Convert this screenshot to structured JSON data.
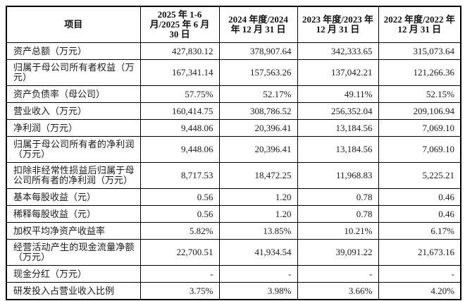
{
  "colors": {
    "background": "#ffffff",
    "border": "#000000",
    "text": "#1a1a1a"
  },
  "table": {
    "columns": [
      "项目",
      "2025 年 1-6 月/2025 年 6 月 30 日",
      "2024 年度/2024 年 12 月 31 日",
      "2023 年度/2023 年 12 月 31 日",
      "2022 年度/2022 年 12 月 31 日"
    ],
    "rows": [
      {
        "label": "资产总额（万元）",
        "values": [
          "427,830.12",
          "378,907.64",
          "342,333.65",
          "315,073.64"
        ]
      },
      {
        "label": "归属于母公司所有者权益（万元）",
        "values": [
          "167,341.14",
          "157,563.26",
          "137,042.21",
          "121,266.36"
        ]
      },
      {
        "label": "资产负债率（母公司）",
        "values": [
          "57.75%",
          "52.17%",
          "49.11%",
          "52.15%"
        ]
      },
      {
        "label": "营业收入（万元）",
        "values": [
          "160,414.75",
          "308,786.52",
          "256,352.04",
          "209,106.94"
        ]
      },
      {
        "label": "净利润（万元）",
        "values": [
          "9,448.06",
          "20,396.41",
          "13,184.56",
          "7,069.10"
        ]
      },
      {
        "label": "归属于母公司所有者的净利润（万元）",
        "values": [
          "9,448.06",
          "20,396.41",
          "13,184.56",
          "7,069.10"
        ]
      },
      {
        "label": "扣除非经常性损益后归属于母公司所有者的净利润（万元）",
        "values": [
          "8,717.53",
          "18,472.25",
          "11,968.83",
          "5,225.21"
        ]
      },
      {
        "label": "基本每股收益（元）",
        "values": [
          "0.56",
          "1.20",
          "0.78",
          "0.46"
        ]
      },
      {
        "label": "稀释每股收益（元）",
        "values": [
          "0.56",
          "1.20",
          "0.78",
          "0.46"
        ]
      },
      {
        "label": "加权平均净资产收益率",
        "values": [
          "5.82%",
          "13.85%",
          "10.21%",
          "6.17%"
        ]
      },
      {
        "label": "经营活动产生的现金流量净额（万元）",
        "values": [
          "22,700.51",
          "41,934.54",
          "39,091.22",
          "21,673.16"
        ]
      },
      {
        "label": "现金分红（万元）",
        "values": [
          "-",
          "-",
          "-",
          "-"
        ]
      },
      {
        "label": "研发投入占营业收入比例",
        "values": [
          "3.75%",
          "3.98%",
          "3.66%",
          "4.20%"
        ]
      }
    ]
  }
}
